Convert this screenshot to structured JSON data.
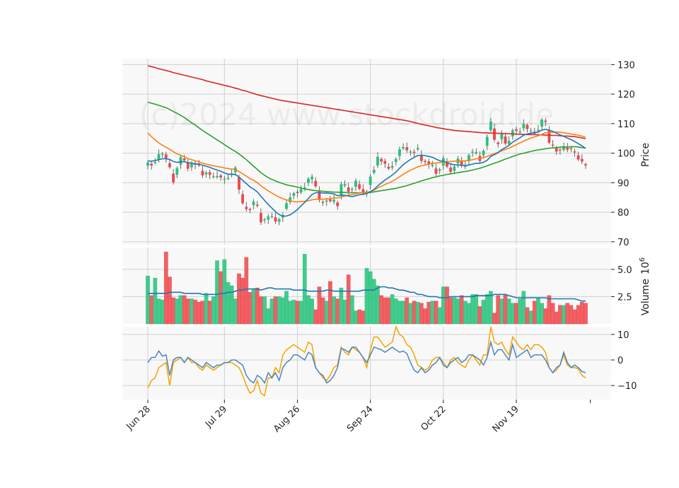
{
  "watermark": "(c)2024 www.stockdroid.de",
  "colors": {
    "panel_bg": "#f8f8f8",
    "grid": "#d0d0d0",
    "up": "#26c27a",
    "down": "#f0454a",
    "ma_short": "#1f77b4",
    "ma_mid": "#ff7f0e",
    "ma_long": "#2ca02c",
    "ma_200": "#d62728",
    "osc_a": "#4a86c0",
    "osc_b": "#f5a300"
  },
  "chart_data": [
    {
      "type": "candlestick",
      "panel": "price",
      "ylabel": "Price",
      "ylim": [
        69,
        132
      ],
      "yticks": [
        "70",
        "80",
        "90",
        "100",
        "110",
        "120",
        "130"
      ],
      "xticks": [
        "Jun 28",
        "Jul 29",
        "Aug 26",
        "Sep 24",
        "Oct 22",
        "Nov 19"
      ],
      "xtick_index": [
        0,
        21,
        41,
        61,
        81,
        101
      ],
      "n_days": 121,
      "close": [
        96.8,
        95.9,
        97.0,
        99.6,
        99.8,
        98.3,
        95.3,
        90.2,
        94.9,
        98.6,
        97.6,
        94.8,
        96.7,
        96.1,
        95.9,
        92.5,
        93.4,
        92.7,
        92.1,
        92.2,
        91.8,
        91.3,
        91.6,
        93.1,
        95.1,
        87.7,
        83.1,
        81.1,
        80.9,
        83.5,
        82.2,
        76.6,
        77.5,
        78.5,
        78.6,
        76.9,
        77.6,
        79.0,
        83.0,
        85.0,
        86.4,
        86.6,
        87.8,
        88.3,
        91.3,
        92.0,
        88.8,
        84.2,
        83.4,
        83.9,
        83.8,
        84.2,
        82.1,
        89.4,
        89.5,
        87.0,
        87.9,
        90.6,
        88.0,
        86.6,
        87.0,
        92.0,
        94.3,
        98.7,
        97.2,
        96.5,
        94.8,
        95.6,
        98.0,
        101.3,
        102.0,
        101.0,
        100.5,
        100.3,
        101.7,
        97.4,
        97.2,
        96.2,
        96.1,
        93.1,
        94.5,
        98.3,
        95.5,
        93.7,
        95.4,
        98.1,
        95.8,
        95.8,
        99.3,
        100.5,
        100.3,
        97.4,
        100.8,
        105.5,
        110.6,
        104.6,
        103.1,
        106.8,
        103.3,
        104.1,
        107.7,
        107.6,
        107.3,
        109.8,
        108.2,
        107.7,
        106.7,
        107.9,
        111.3,
        110.6,
        103.6,
        102.8,
        100.6,
        101.0,
        102.3,
        101.2,
        101.5,
        100.3,
        97.9,
        97.2,
        95.9
      ],
      "volume": [
        4.4,
        2.6,
        4.2,
        2.3,
        2.2,
        6.6,
        4.3,
        2.4,
        2.3,
        2.6,
        2.6,
        2.3,
        2.3,
        2.2,
        2.0,
        2.1,
        2.8,
        2.1,
        2.5,
        5.8,
        4.8,
        5.9,
        3.8,
        3.5,
        2.3,
        4.6,
        4.2,
        6.1,
        2.9,
        3.2,
        3.3,
        2.5,
        2.5,
        1.4,
        2.3,
        2.5,
        2.5,
        2.4,
        3.0,
        2.1,
        2.2,
        2.1,
        2.1,
        6.4,
        2.6,
        2.3,
        1.3,
        3.4,
        2.4,
        2.1,
        3.9,
        2.5,
        2.3,
        3.3,
        2.2,
        4.5,
        2.6,
        1.2,
        1.3,
        1.2,
        5.1,
        4.8,
        4.1,
        3.5,
        2.6,
        2.4,
        2.4,
        2.7,
        2.3,
        2.1,
        2.1,
        2.4,
        1.9,
        2.1,
        2.0,
        1.9,
        1.4,
        2.0,
        2.1,
        2.1,
        1.5,
        3.4,
        3.4,
        2.4,
        2.4,
        2.3,
        2.6,
        2.1,
        1.9,
        2.7,
        2.7,
        1.6,
        2.2,
        2.7,
        3.0,
        1.0,
        2.6,
        2.3,
        2.7,
        2.3,
        1.9,
        1.9,
        2.3,
        3.0,
        1.5,
        1.2,
        2.1,
        2.4,
        1.9,
        1.4,
        2.6,
        1.9,
        1.1,
        1.7,
        1.7,
        1.9,
        1.7,
        1.3,
        1.7,
        2.0,
        1.9
      ],
      "ma_short": [
        97.4,
        97.3,
        97.5,
        97.8,
        98.1,
        98.1,
        97.9,
        97.2,
        96.9,
        97.1,
        97.1,
        96.8,
        96.6,
        96.4,
        96.3,
        95.9,
        95.6,
        95.2,
        94.7,
        94.3,
        93.9,
        93.3,
        92.9,
        92.8,
        92.8,
        91.9,
        90.8,
        89.7,
        88.6,
        87.8,
        86.9,
        85.4,
        84.0,
        82.6,
        81.4,
        80.2,
        79.2,
        78.7,
        78.7,
        79.1,
        79.9,
        80.9,
        82.2,
        83.3,
        84.7,
        86.0,
        86.6,
        86.6,
        86.5,
        86.5,
        86.4,
        86.2,
        85.6,
        85.8,
        85.7,
        85.5,
        85.3,
        85.6,
        85.9,
        86.1,
        86.3,
        87.0,
        87.7,
        88.9,
        89.9,
        90.9,
        91.7,
        92.6,
        93.6,
        94.9,
        96.1,
        97.0,
        97.9,
        98.6,
        99.2,
        99.3,
        99.2,
        98.9,
        98.6,
        98.0,
        97.4,
        97.3,
        96.8,
        96.3,
        96.1,
        96.0,
        95.9,
        95.8,
        96.0,
        96.3,
        96.6,
        96.6,
        96.9,
        97.6,
        98.9,
        99.5,
        100.2,
        101.2,
        101.9,
        102.7,
        103.7,
        104.5,
        105.2,
        106.1,
        106.5,
        106.8,
        106.9,
        107.2,
        107.8,
        108.1,
        107.8,
        107.4,
        106.8,
        106.2,
        105.7,
        105.1,
        104.6,
        104.0,
        103.2,
        102.5,
        101.6
      ],
      "ma_mid": [
        106.8,
        105.6,
        104.5,
        103.5,
        102.7,
        102.0,
        101.3,
        100.5,
        99.8,
        99.3,
        98.8,
        98.2,
        97.8,
        97.4,
        97.1,
        96.6,
        96.3,
        96.0,
        95.7,
        95.5,
        95.3,
        95.0,
        94.8,
        94.6,
        94.5,
        93.8,
        93.0,
        92.2,
        91.4,
        90.8,
        90.0,
        89.0,
        88.1,
        87.2,
        86.5,
        85.8,
        85.1,
        84.6,
        84.2,
        83.9,
        83.6,
        83.5,
        83.6,
        83.7,
        83.9,
        84.2,
        84.4,
        84.4,
        84.4,
        84.5,
        84.6,
        84.8,
        84.8,
        85.2,
        85.5,
        85.8,
        86.0,
        86.3,
        86.5,
        86.6,
        86.7,
        87.0,
        87.5,
        88.2,
        88.8,
        89.4,
        89.9,
        90.5,
        91.2,
        92.0,
        92.8,
        93.6,
        94.2,
        94.8,
        95.4,
        95.7,
        96.0,
        96.3,
        96.6,
        96.7,
        96.8,
        97.0,
        97.1,
        97.2,
        97.3,
        97.4,
        97.4,
        97.4,
        97.6,
        97.8,
        98.1,
        98.3,
        98.5,
        98.9,
        99.4,
        99.8,
        100.3,
        100.8,
        101.3,
        101.7,
        102.3,
        102.9,
        103.5,
        104.1,
        104.6,
        105.1,
        105.5,
        105.9,
        106.4,
        106.9,
        107.0,
        107.1,
        107.2,
        107.1,
        106.9,
        106.7,
        106.5,
        106.3,
        106.1,
        105.8,
        105.4
      ],
      "ma_long": [
        117.3,
        116.9,
        116.6,
        116.2,
        115.8,
        115.4,
        114.8,
        114.1,
        113.5,
        112.8,
        112.1,
        111.2,
        110.3,
        109.5,
        108.6,
        107.7,
        106.9,
        106.1,
        105.3,
        104.5,
        103.7,
        102.9,
        102.1,
        101.3,
        100.6,
        99.7,
        98.8,
        97.8,
        96.7,
        95.6,
        94.5,
        93.4,
        92.5,
        91.7,
        91.1,
        90.6,
        90.1,
        89.7,
        89.3,
        89.0,
        88.8,
        88.5,
        88.2,
        87.9,
        87.7,
        87.5,
        87.3,
        87.2,
        87.1,
        87.0,
        86.9,
        86.8,
        86.8,
        86.7,
        86.7,
        86.6,
        86.6,
        86.6,
        86.6,
        86.6,
        86.6,
        86.7,
        86.9,
        87.1,
        87.3,
        87.5,
        87.7,
        87.9,
        88.1,
        88.4,
        88.7,
        89.0,
        89.4,
        89.8,
        90.2,
        90.6,
        91.0,
        91.3,
        91.7,
        92.0,
        92.3,
        92.5,
        92.8,
        93.0,
        93.2,
        93.4,
        93.6,
        93.8,
        94.0,
        94.3,
        94.6,
        94.9,
        95.3,
        95.7,
        96.2,
        96.6,
        97.0,
        97.5,
        98.0,
        98.4,
        98.9,
        99.3,
        99.7,
        100.0,
        100.3,
        100.6,
        100.9,
        101.1,
        101.3,
        101.5,
        101.7,
        101.8,
        101.9,
        102.0,
        102.1,
        102.1,
        102.2,
        102.2,
        102.1,
        101.9,
        101.8
      ],
      "ma_200": [
        129.6,
        129.3,
        129.0,
        128.6,
        128.3,
        128.0,
        127.7,
        127.3,
        127.0,
        126.7,
        126.4,
        126.1,
        125.8,
        125.5,
        125.2,
        124.9,
        124.5,
        124.2,
        123.9,
        123.6,
        123.3,
        123.0,
        122.7,
        122.4,
        122.0,
        121.7,
        121.3,
        121.0,
        120.6,
        120.2,
        119.8,
        119.5,
        119.2,
        118.9,
        118.6,
        118.3,
        118.0,
        117.8,
        117.6,
        117.4,
        117.2,
        117.0,
        116.8,
        116.6,
        116.4,
        116.2,
        116.0,
        115.8,
        115.6,
        115.4,
        115.2,
        115.0,
        114.8,
        114.6,
        114.4,
        114.2,
        114.0,
        113.8,
        113.6,
        113.4,
        113.2,
        113.0,
        112.8,
        112.6,
        112.4,
        112.2,
        112.0,
        111.8,
        111.6,
        111.4,
        111.2,
        111.0,
        110.7,
        110.4,
        110.1,
        109.8,
        109.5,
        109.3,
        109.0,
        108.7,
        108.5,
        108.3,
        108.1,
        107.9,
        107.7,
        107.6,
        107.5,
        107.4,
        107.3,
        107.2,
        107.1,
        107.0,
        106.9,
        106.9,
        106.8,
        106.8,
        106.7,
        106.7,
        106.6,
        106.6,
        106.5,
        106.5,
        106.4,
        106.4,
        106.3,
        106.3,
        106.3,
        106.2,
        106.2,
        106.1,
        106.1,
        106.0,
        106.0,
        105.9,
        105.8,
        105.8,
        105.7,
        105.6,
        105.4,
        105.2,
        104.9
      ]
    },
    {
      "type": "bar",
      "panel": "volume",
      "ylabel": "Volume  10^6",
      "ylabel_text": "Volume",
      "ylabel_exp": "10",
      "ylabel_sup": "6",
      "ylim": [
        0,
        7.0
      ],
      "yticks": [
        "2.5",
        "5.0"
      ],
      "volume_ma": [
        2.8,
        2.8,
        2.8,
        2.8,
        2.8,
        2.8,
        2.9,
        2.9,
        2.9,
        2.9,
        2.8,
        2.8,
        2.8,
        2.8,
        2.8,
        2.7,
        2.7,
        2.7,
        2.7,
        2.7,
        2.8,
        2.8,
        2.9,
        2.9,
        3.0,
        3.1,
        3.1,
        3.2,
        3.2,
        3.2,
        3.2,
        3.1,
        3.2,
        3.3,
        3.3,
        3.2,
        3.2,
        3.2,
        3.2,
        3.2,
        3.1,
        3.1,
        3.1,
        3.1,
        3.0,
        3.0,
        3.0,
        3.0,
        3.0,
        3.1,
        3.1,
        3.0,
        3.0,
        3.0,
        3.0,
        3.0,
        3.0,
        3.0,
        3.0,
        3.1,
        3.1,
        3.1,
        3.1,
        3.3,
        3.4,
        3.4,
        3.3,
        3.3,
        3.2,
        3.1,
        3.1,
        3.0,
        2.9,
        2.9,
        2.7,
        2.7,
        2.6,
        2.5,
        2.5,
        2.5,
        2.4,
        2.4,
        2.4,
        2.5,
        2.5,
        2.5,
        2.5,
        2.5,
        2.5,
        2.5,
        2.6,
        2.6,
        2.6,
        2.6,
        2.6,
        2.7,
        2.7,
        2.7,
        2.7,
        2.6,
        2.5,
        2.4,
        2.4,
        2.4,
        2.4,
        2.4,
        2.4,
        2.4,
        2.4,
        2.4,
        2.3,
        2.3,
        2.3,
        2.3,
        2.3,
        2.3,
        2.3,
        2.3,
        2.2,
        2.1,
        2.1
      ]
    },
    {
      "type": "line",
      "panel": "oscillator",
      "ylim": [
        -15.5,
        13
      ],
      "yticks": [
        "−10",
        "0",
        "10"
      ],
      "series": [
        {
          "name": "osc_a",
          "values": [
            -1.0,
            1.0,
            1.0,
            3.5,
            1.5,
            2.0,
            -6.0,
            0.0,
            1.0,
            1.0,
            -1.0,
            1.0,
            0.0,
            -1.0,
            -2.0,
            -3.0,
            -1.0,
            -2.0,
            -3.0,
            -2.0,
            -2.0,
            -1.0,
            -1.0,
            0.0,
            0.0,
            -1.0,
            -2.0,
            -6.0,
            -8.0,
            -9.0,
            -6.0,
            -7.0,
            -9.0,
            -5.0,
            -7.0,
            -5.0,
            -8.0,
            -3.0,
            -1.0,
            0.0,
            2.0,
            2.0,
            1.0,
            0.0,
            3.0,
            2.0,
            -3.0,
            -5.0,
            -6.0,
            -9.0,
            -8.0,
            -6.0,
            -3.0,
            4.5,
            4.0,
            3.0,
            5.0,
            5.0,
            3.0,
            1.0,
            -1.0,
            2.0,
            5.0,
            4.5,
            4.0,
            3.0,
            4.0,
            5.0,
            4.0,
            3.0,
            3.5,
            2.5,
            -1.0,
            -4.0,
            -5.0,
            -3.0,
            -5.0,
            -4.0,
            -2.0,
            -1.0,
            1.0,
            -2.0,
            -3.0,
            -1.0,
            0.0,
            1.0,
            -1.0,
            0.0,
            2.0,
            2.0,
            1.0,
            0.0,
            -2.0,
            1.0,
            7.0,
            2.0,
            4.0,
            4.0,
            2.0,
            0.0,
            6.0,
            1.0,
            2.0,
            3.0,
            4.0,
            1.0,
            2.0,
            2.0,
            2.0,
            0.0,
            -3.0,
            -5.0,
            -3.0,
            -2.0,
            3.0,
            -1.0,
            -3.0,
            -2.0,
            -3.0,
            -4.5,
            -5.0
          ]
        },
        {
          "name": "osc_b",
          "values": [
            -11.0,
            -8.0,
            -7.0,
            -3.0,
            -2.0,
            -1.0,
            -10.0,
            -1.0,
            0.0,
            1.0,
            -1.0,
            1.0,
            -1.0,
            -1.0,
            -3.0,
            -4.0,
            -2.0,
            -3.0,
            -4.0,
            -3.0,
            -2.0,
            -1.0,
            -1.0,
            -1.0,
            -2.0,
            -3.0,
            -6.0,
            -10.0,
            -13.0,
            -12.0,
            -8.0,
            -13.0,
            -14.0,
            -7.0,
            -7.0,
            -3.0,
            -5.0,
            2.0,
            4.0,
            5.0,
            6.0,
            5.0,
            4.0,
            3.0,
            7.0,
            6.0,
            -3.0,
            -5.0,
            -7.0,
            -8.0,
            -6.0,
            -3.0,
            -2.0,
            5.0,
            3.0,
            2.0,
            5.0,
            4.0,
            3.0,
            1.0,
            -3.0,
            4.0,
            9.0,
            9.0,
            7.0,
            5.0,
            6.0,
            7.0,
            13.0,
            10.0,
            9.0,
            6.0,
            5.0,
            2.0,
            -2.0,
            -3.0,
            -4.0,
            -3.0,
            0.0,
            1.0,
            1.0,
            -1.0,
            -3.0,
            0.0,
            1.0,
            -1.0,
            -2.0,
            -3.0,
            0.0,
            2.0,
            0.0,
            -2.0,
            2.0,
            2.0,
            13.0,
            7.0,
            6.0,
            7.0,
            4.0,
            2.0,
            9.0,
            7.0,
            5.0,
            4.0,
            6.0,
            4.0,
            6.0,
            6.0,
            5.0,
            3.0,
            -3.0,
            -5.0,
            -4.0,
            -2.0,
            2.0,
            -2.0,
            -3.0,
            -3.0,
            -3.5,
            -6.0,
            -7.0
          ]
        }
      ]
    }
  ]
}
